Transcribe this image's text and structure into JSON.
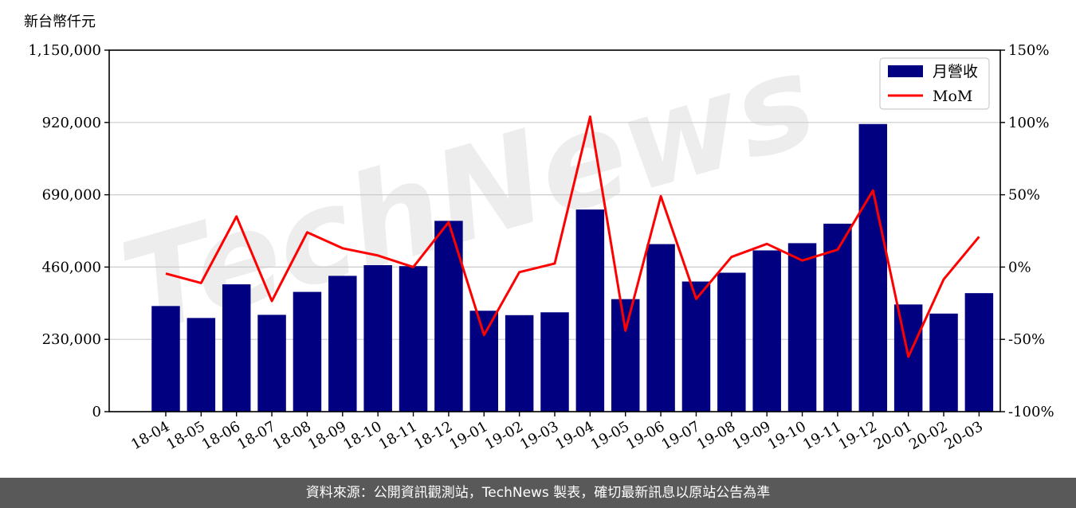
{
  "chart_data": {
    "type": "bar",
    "y_unit_label": "新台幣仟元",
    "categories": [
      "18-04",
      "18-05",
      "18-06",
      "18-07",
      "18-08",
      "18-09",
      "18-10",
      "18-11",
      "18-12",
      "19-01",
      "19-02",
      "19-03",
      "19-04",
      "19-05",
      "19-06",
      "19-07",
      "19-08",
      "19-09",
      "19-10",
      "19-11",
      "19-12",
      "20-01",
      "20-02",
      "20-03"
    ],
    "series": [
      {
        "name": "月營收",
        "type": "bar",
        "axis": "left",
        "color": "#000080",
        "values": [
          336000,
          298000,
          405000,
          308000,
          381000,
          432000,
          466000,
          463000,
          607000,
          321000,
          307000,
          316000,
          643000,
          358000,
          533000,
          414000,
          442000,
          513000,
          536000,
          598000,
          915000,
          341000,
          312000,
          377000
        ]
      },
      {
        "name": "MoM",
        "type": "line",
        "axis": "right",
        "color": "#ff0000",
        "values": [
          -4.5,
          -11,
          35,
          -23.5,
          24,
          13,
          8,
          0,
          31,
          -47,
          -3.5,
          2.5,
          104,
          -44,
          49,
          -22,
          7,
          16,
          4.5,
          12,
          53,
          -62,
          -8.5,
          21
        ]
      }
    ],
    "y_left": {
      "ylim": [
        0,
        1150000
      ],
      "ticks": [
        0,
        230000,
        460000,
        690000,
        920000,
        1150000
      ],
      "tick_labels": [
        "0",
        "230,000",
        "460,000",
        "690,000",
        "920,000",
        "1,150,000"
      ]
    },
    "y_right": {
      "ylim": [
        -100,
        150
      ],
      "ticks": [
        -100,
        -50,
        0,
        50,
        100,
        150
      ],
      "tick_labels": [
        "-100%",
        "-50%",
        "0%",
        "50%",
        "100%",
        "150%"
      ]
    },
    "grid": true,
    "legend_position": "top-right"
  },
  "watermark": "TechNews",
  "footer": {
    "text": "資料來源：公開資訊觀測站，TechNews 製表，確切最新訊息以原站公告為準"
  }
}
